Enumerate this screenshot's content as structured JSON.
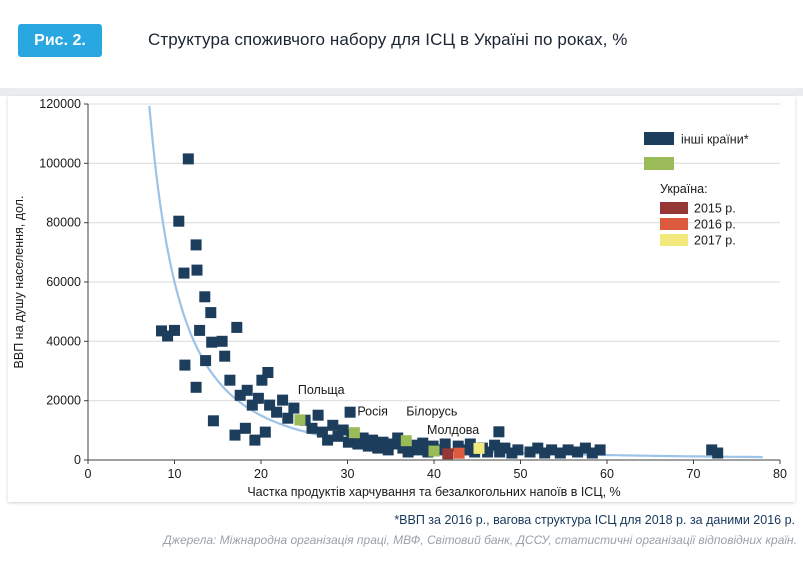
{
  "page": {
    "figure_label": "Рис. 2.",
    "title": "Структура споживчого набору для ІСЦ в Україні по роках, %",
    "footnote": "*ВВП за 2016 р., вагова структура ІСЦ для 2018 р. за даними 2016 р.",
    "sources": "Джерела: Міжнародна організація праці, МВФ, Світовий банк, ДССУ, статистичні організації відповідних країн."
  },
  "colors": {
    "badge": "#29a7e1",
    "other_countries": "#1d3d5c",
    "neighbor_countries": "#9bbb59",
    "ukraine_2015": "#953735",
    "ukraine_2016": "#dd5b3c",
    "ukraine_2017": "#f2e97c",
    "trend_line": "#9dc3e6",
    "gridline": "#d9d9d9",
    "axis": "#404040",
    "tick_text": "#1a1a1a"
  },
  "chart_data": {
    "type": "scatter",
    "title": "Структура споживчого набору для ІСЦ в Україні по роках, %",
    "xlabel": "Частка продуктів харчування та безалкогольних напоїв в ІСЦ, %",
    "ylabel": "ВВП на душу населення, дол.",
    "xlim": [
      0,
      80
    ],
    "ylim": [
      0,
      120000
    ],
    "xticks": [
      0,
      10,
      20,
      30,
      40,
      50,
      60,
      70,
      80
    ],
    "yticks": [
      0,
      20000,
      40000,
      60000,
      80000,
      100000,
      120000
    ],
    "grid": "horizontal",
    "marker_size": 11,
    "legend": {
      "position": "top-right",
      "items": [
        {
          "label": "інші країни*",
          "color": "#1d3d5c",
          "type": "swatch"
        },
        {
          "label": "",
          "color": "#9bbb59",
          "type": "swatch"
        },
        {
          "label": "Україна:",
          "type": "heading"
        },
        {
          "label": "2015 р.",
          "color": "#953735",
          "type": "swatch-small"
        },
        {
          "label": "2016 р.",
          "color": "#dd5b3c",
          "type": "swatch-small"
        },
        {
          "label": "2017 р.",
          "color": "#f2e97c",
          "type": "swatch-small"
        }
      ]
    },
    "series": [
      {
        "name": "інші країни*",
        "color": "#1d3d5c",
        "points": [
          [
            8.5,
            43500
          ],
          [
            9.2,
            41800
          ],
          [
            10,
            43700
          ],
          [
            10.5,
            80500
          ],
          [
            11.1,
            63000
          ],
          [
            11.2,
            32000
          ],
          [
            11.6,
            101500
          ],
          [
            12.5,
            72500
          ],
          [
            12.5,
            24500
          ],
          [
            12.6,
            64000
          ],
          [
            12.9,
            43700
          ],
          [
            13.5,
            55000
          ],
          [
            13.6,
            33500
          ],
          [
            14.2,
            49700
          ],
          [
            14.3,
            39700
          ],
          [
            14.5,
            13200
          ],
          [
            15.5,
            40000
          ],
          [
            15.8,
            35000
          ],
          [
            16.4,
            26900
          ],
          [
            17,
            8400
          ],
          [
            17.2,
            44700
          ],
          [
            17.6,
            21800
          ],
          [
            18.2,
            10700
          ],
          [
            18.4,
            23500
          ],
          [
            19,
            18500
          ],
          [
            19.3,
            6700
          ],
          [
            19.7,
            20800
          ],
          [
            20.1,
            26900
          ],
          [
            20.5,
            9400
          ],
          [
            20.8,
            29500
          ],
          [
            21,
            18500
          ],
          [
            21.8,
            16100
          ],
          [
            22.5,
            20200
          ],
          [
            23.1,
            14100
          ],
          [
            23.8,
            17500
          ],
          [
            25.1,
            13400
          ],
          [
            25.9,
            10700
          ],
          [
            26.6,
            15100
          ],
          [
            27.1,
            9400
          ],
          [
            27.7,
            6700
          ],
          [
            28.3,
            11700
          ],
          [
            28.9,
            8000
          ],
          [
            29.5,
            10100
          ],
          [
            30.1,
            6000
          ],
          [
            30.3,
            16100
          ],
          [
            30.5,
            8400
          ],
          [
            31.2,
            5400
          ],
          [
            31.8,
            7400
          ],
          [
            32.4,
            4700
          ],
          [
            32.9,
            6700
          ],
          [
            33.5,
            4000
          ],
          [
            34.1,
            6000
          ],
          [
            34.7,
            3400
          ],
          [
            35.3,
            5400
          ],
          [
            35.8,
            7400
          ],
          [
            36.4,
            4000
          ],
          [
            37,
            2700
          ],
          [
            37.6,
            5000
          ],
          [
            38.2,
            3400
          ],
          [
            38.7,
            5700
          ],
          [
            39.3,
            2700
          ],
          [
            39.9,
            4700
          ],
          [
            40.7,
            3400
          ],
          [
            41.3,
            5400
          ],
          [
            42.8,
            4700
          ],
          [
            43.6,
            3400
          ],
          [
            44.2,
            5400
          ],
          [
            44.7,
            2700
          ],
          [
            45.6,
            4000
          ],
          [
            46.2,
            2700
          ],
          [
            47,
            5000
          ],
          [
            47.5,
            9500
          ],
          [
            47.6,
            2700
          ],
          [
            48.2,
            4000
          ],
          [
            49,
            2350
          ],
          [
            49.7,
            3400
          ],
          [
            51.1,
            2700
          ],
          [
            52,
            4000
          ],
          [
            52.8,
            2350
          ],
          [
            53.6,
            3400
          ],
          [
            54.6,
            2350
          ],
          [
            55.5,
            3400
          ],
          [
            56.6,
            2700
          ],
          [
            57.5,
            4000
          ],
          [
            58.3,
            2350
          ],
          [
            59.2,
            3400
          ],
          [
            72.1,
            3400
          ],
          [
            72.8,
            2350
          ]
        ]
      },
      {
        "name": "",
        "color": "#9bbb59",
        "points": [
          {
            "label": "Польща",
            "x": 24.5,
            "y": 13500,
            "label_dx": -2,
            "label_dy": -26
          },
          {
            "label": "Росія",
            "x": 30.8,
            "y": 9200,
            "label_dx": 3,
            "label_dy": -17
          },
          {
            "label": "Білорусь",
            "x": 36.8,
            "y": 6500,
            "label_dx": 0,
            "label_dy": -25
          },
          {
            "label": "Молдова",
            "x": 40,
            "y": 3000,
            "label_dx": -7,
            "label_dy": -17
          }
        ]
      },
      {
        "name": "Україна",
        "points": [
          {
            "label": "2015 р.",
            "x": 41.6,
            "y": 2100,
            "color": "#953735"
          },
          {
            "label": "2016 р.",
            "x": 42.9,
            "y": 2300,
            "color": "#dd5b3c"
          },
          {
            "label": "2017 р.",
            "x": 45.2,
            "y": 3900,
            "color": "#f2e97c"
          }
        ]
      }
    ],
    "trend": {
      "type": "power",
      "formula": "y = a * x^b",
      "a": 6000000,
      "b": -2,
      "x_range": [
        7.1,
        78
      ],
      "color": "#9dc3e6"
    }
  }
}
